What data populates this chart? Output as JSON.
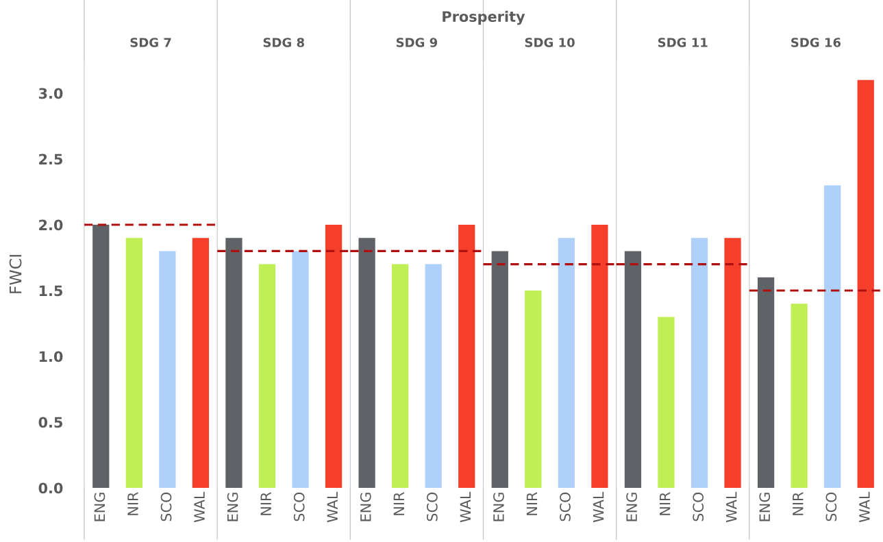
{
  "chart_data": [
    {
      "type": "bar",
      "title": "SDG 7",
      "annotations": [
        "Prosperity"
      ],
      "ylabel": "FWCI",
      "categories": [
        "ENG",
        "NIR",
        "SCO",
        "WAL"
      ],
      "values": [
        2.0,
        1.9,
        1.8,
        1.9
      ],
      "colors": [
        "#5f6368",
        "#c0ef55",
        "#aed0fb",
        "#f53f2a"
      ],
      "ylim": [
        0,
        3.25
      ],
      "yticks": [
        {
          "value": 0,
          "label": "0.0"
        },
        0.5,
        {
          "value": 1,
          "label": "1.0"
        },
        1.5,
        {
          "value": 2,
          "label": "2.0"
        },
        2.5,
        {
          "value": 3,
          "label": "3.0"
        }
      ],
      "ref_lines": [
        {
          "axis": "y",
          "value": 2.0,
          "color": "#b01010",
          "line_style": "dashed"
        }
      ],
      "grid": false
    },
    {
      "type": "bar",
      "title": "SDG 8",
      "categories": [
        "ENG",
        "NIR",
        "SCO",
        "WAL"
      ],
      "values": [
        1.9,
        1.7,
        1.8,
        2.0
      ],
      "colors": [
        "#5f6368",
        "#c0ef55",
        "#aed0fb",
        "#f53f2a"
      ],
      "ylim": [
        0,
        3.25
      ],
      "tick_labels": "x",
      "ref_lines": [
        {
          "axis": "y",
          "value": 1.8,
          "color": "#b01010",
          "line_style": "dashed"
        }
      ],
      "grid": false
    },
    {
      "type": "bar",
      "title": "SDG 9",
      "categories": [
        "ENG",
        "NIR",
        "SCO",
        "WAL"
      ],
      "values": [
        1.9,
        1.7,
        1.7,
        2.0
      ],
      "colors": [
        "#5f6368",
        "#c0ef55",
        "#aed0fb",
        "#f53f2a"
      ],
      "ylim": [
        0,
        3.25
      ],
      "tick_labels": "x",
      "ref_lines": [
        {
          "axis": "y",
          "value": 1.8,
          "color": "#b01010",
          "line_style": "dashed"
        }
      ],
      "grid": false
    },
    {
      "type": "bar",
      "title": "SDG 10",
      "categories": [
        "ENG",
        "NIR",
        "SCO",
        "WAL"
      ],
      "values": [
        1.8,
        1.5,
        1.9,
        2.0
      ],
      "colors": [
        "#5f6368",
        "#c0ef55",
        "#aed0fb",
        "#f53f2a"
      ],
      "ylim": [
        0,
        3.25
      ],
      "tick_labels": "x",
      "ref_lines": [
        {
          "axis": "y",
          "value": 1.7,
          "color": "#b01010",
          "line_style": "dashed"
        }
      ],
      "grid": false
    },
    {
      "type": "bar",
      "title": "SDG 11",
      "categories": [
        "ENG",
        "NIR",
        "SCO",
        "WAL"
      ],
      "values": [
        1.8,
        1.3,
        1.9,
        1.9
      ],
      "colors": [
        "#5f6368",
        "#c0ef55",
        "#aed0fb",
        "#f53f2a"
      ],
      "ylim": [
        0,
        3.25
      ],
      "tick_labels": "x",
      "ref_lines": [
        {
          "axis": "y",
          "value": 1.7,
          "color": "#b01010",
          "line_style": "dashed"
        }
      ],
      "grid": false
    },
    {
      "type": "bar",
      "title": "SDG 16",
      "categories": [
        "ENG",
        "NIR",
        "SCO",
        "WAL"
      ],
      "values": [
        1.6,
        1.4,
        2.3,
        3.1
      ],
      "colors": [
        "#5f6368",
        "#c0ef55",
        "#aed0fb",
        "#f53f2a"
      ],
      "ylim": [
        0,
        3.25
      ],
      "tick_labels": "x",
      "ref_lines": [
        {
          "axis": "y",
          "value": 1.5,
          "color": "#b01010",
          "line_style": "dashed"
        }
      ],
      "grid": false
    }
  ]
}
